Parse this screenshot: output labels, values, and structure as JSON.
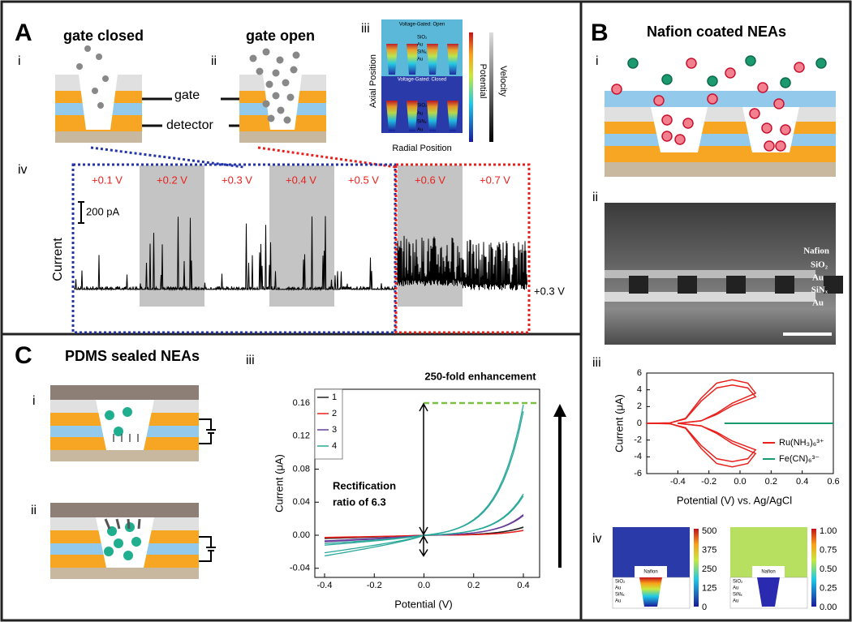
{
  "panel_a": {
    "letter": "A",
    "closed": {
      "label": "i",
      "title": "gate closed"
    },
    "open": {
      "label": "ii",
      "title": "gate open"
    },
    "gate": "gate",
    "detector": "detector",
    "sim": {
      "label": "iii",
      "open": "Voltage-Gated: Open",
      "closed": "Voltage-Gated: Closed",
      "layers": [
        "SiO₂",
        "Au",
        "SiNₓ",
        "Au"
      ],
      "y_axis": "Axial Position",
      "x_axis": "Radial Position",
      "potential": "Potential",
      "velocity": "Velocity"
    },
    "trace": {
      "label": "iv",
      "voltages": [
        "+0.1 V",
        "+0.2 V",
        "+0.3 V",
        "+0.4 V",
        "+0.5 V",
        "+0.6 V",
        "+0.7 V"
      ],
      "scale": "200 pA",
      "y_axis": "Current",
      "bias": "+0.3 V"
    }
  },
  "panel_b": {
    "letter": "B",
    "title": "Nafion coated NEAs",
    "schematic_label": "i",
    "sem": {
      "label": "ii",
      "layers": [
        "Nafion",
        "SiO₂",
        "Au",
        "SiNₓ",
        "Au"
      ]
    },
    "cv": {
      "label": "iii",
      "y_axis": "Current (μA)",
      "x_axis": "Potential (V) vs. Ag/AgCl",
      "xticks": [
        "-0.4",
        "-0.2",
        "0.0",
        "0.2",
        "0.4",
        "0.6"
      ],
      "yticks": [
        "6",
        "4",
        "2",
        "0",
        "-2",
        "-4",
        "-6"
      ],
      "legend": [
        "Ru(NH₃)₆³⁺",
        "Fe(CN)₆³⁻"
      ]
    },
    "sims": {
      "label": "iv",
      "nafion": "Nafion",
      "layers": [
        "SiO₂",
        "Au",
        "SiNₓ",
        "Au"
      ],
      "left_ticks": [
        "500",
        "375",
        "250",
        "125",
        "0"
      ],
      "right_ticks": [
        "1.00",
        "0.75",
        "0.50",
        "0.25",
        "0.00"
      ]
    }
  },
  "panel_c": {
    "letter": "C",
    "title": "PDMS sealed NEAs",
    "schematic_1": "i",
    "schematic_2": "ii",
    "plot": {
      "label": "iii",
      "y_axis": "Current (μA)",
      "x_axis": "Potential (V)",
      "xticks": [
        "-0.4",
        "-0.2",
        "0.0",
        "0.2",
        "0.4"
      ],
      "yticks": [
        "0.16",
        "0.12",
        "0.08",
        "0.04",
        "0.00",
        "-0.04"
      ],
      "legend": [
        "1",
        "2",
        "3",
        "4"
      ],
      "enhancement": "250-fold enhancement",
      "rectification": [
        "Rectification",
        "ratio of 6.3"
      ]
    }
  }
}
